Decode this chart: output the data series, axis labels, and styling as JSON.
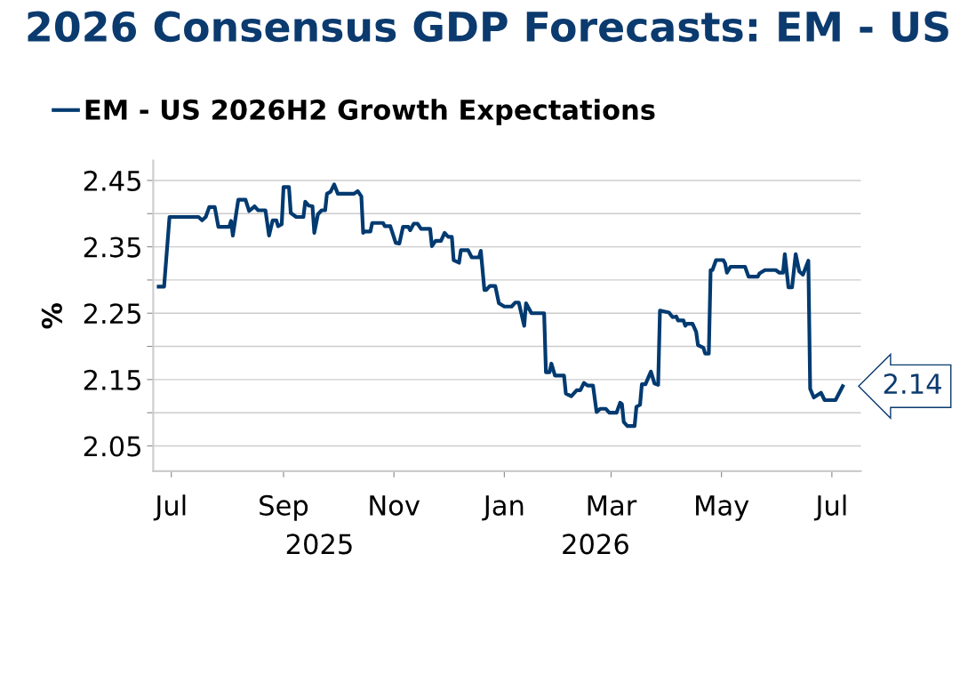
{
  "chart_data": {
    "type": "line",
    "title": "2026 Consensus GDP Forecasts: EM - US",
    "ylabel": "%",
    "x": [
      "2025-06-24",
      "2025-06-27",
      "2025-06-30",
      "2025-07-16",
      "2025-07-18",
      "2025-07-20",
      "2025-07-22",
      "2025-07-25",
      "2025-07-27",
      "2025-08-02",
      "2025-08-03",
      "2025-08-04",
      "2025-08-07",
      "2025-08-11",
      "2025-08-13",
      "2025-08-16",
      "2025-08-18",
      "2025-08-22",
      "2025-08-24",
      "2025-08-26",
      "2025-08-28",
      "2025-08-29",
      "2025-08-31",
      "2025-09-01",
      "2025-09-04",
      "2025-09-05",
      "2025-09-08",
      "2025-09-12",
      "2025-09-13",
      "2025-09-15",
      "2025-09-17",
      "2025-09-18",
      "2025-09-20",
      "2025-09-22",
      "2025-09-24",
      "2025-09-25",
      "2025-09-27",
      "2025-09-29",
      "2025-10-01",
      "2025-10-10",
      "2025-10-12",
      "2025-10-14",
      "2025-10-15",
      "2025-10-16",
      "2025-10-19",
      "2025-10-20",
      "2025-10-26",
      "2025-10-27",
      "2025-10-30",
      "2025-11-02",
      "2025-11-04",
      "2025-11-06",
      "2025-11-09",
      "2025-11-10",
      "2025-11-12",
      "2025-11-14",
      "2025-11-16",
      "2025-11-21",
      "2025-11-22",
      "2025-11-24",
      "2025-11-27",
      "2025-11-29",
      "2025-12-01",
      "2025-12-03",
      "2025-12-04",
      "2025-12-07",
      "2025-12-08",
      "2025-12-12",
      "2025-12-14",
      "2025-12-18",
      "2025-12-19",
      "2025-12-21",
      "2025-12-22",
      "2025-12-24",
      "2025-12-27",
      "2025-12-29",
      "2026-01-01",
      "2026-01-05",
      "2026-01-07",
      "2026-01-09",
      "2026-01-12",
      "2026-01-13",
      "2026-01-16",
      "2026-01-23",
      "2026-01-24",
      "2026-01-26",
      "2026-01-27",
      "2026-01-29",
      "2026-02-03",
      "2026-02-04",
      "2026-02-07",
      "2026-02-10",
      "2026-02-12",
      "2026-02-14",
      "2026-02-16",
      "2026-02-19",
      "2026-02-21",
      "2026-02-23",
      "2026-02-26",
      "2026-02-28",
      "2026-03-04",
      "2026-03-06",
      "2026-03-07",
      "2026-03-08",
      "2026-03-10",
      "2026-03-14",
      "2026-03-15",
      "2026-03-17",
      "2026-03-18",
      "2026-03-20",
      "2026-03-23",
      "2026-03-25",
      "2026-03-27",
      "2026-03-28",
      "2026-04-02",
      "2026-04-04",
      "2026-04-06",
      "2026-04-07",
      "2026-04-10",
      "2026-04-11",
      "2026-04-12",
      "2026-04-15",
      "2026-04-17",
      "2026-04-18",
      "2026-04-21",
      "2026-04-22",
      "2026-04-24",
      "2026-04-25",
      "2026-04-26",
      "2026-04-28",
      "2026-05-02",
      "2026-05-03",
      "2026-05-04",
      "2026-05-06",
      "2026-05-14",
      "2026-05-16",
      "2026-05-21",
      "2026-05-22",
      "2026-05-25",
      "2026-05-31",
      "2026-06-02",
      "2026-06-04",
      "2026-06-05",
      "2026-06-07",
      "2026-06-09",
      "2026-06-11",
      "2026-06-13",
      "2026-06-15",
      "2026-06-18",
      "2026-06-19",
      "2026-06-21",
      "2026-06-25",
      "2026-06-27",
      "2026-07-03",
      "2026-07-07"
    ],
    "series": [
      {
        "name": "EM - US 2026H2 Growth Expectations",
        "color": "#003a70",
        "values": [
          2.29,
          2.29,
          2.395,
          2.395,
          2.39,
          2.395,
          2.41,
          2.41,
          2.38,
          2.38,
          2.389,
          2.367,
          2.421,
          2.421,
          2.404,
          2.411,
          2.405,
          2.405,
          2.367,
          2.39,
          2.39,
          2.381,
          2.384,
          2.44,
          2.44,
          2.401,
          2.395,
          2.395,
          2.418,
          2.412,
          2.411,
          2.371,
          2.399,
          2.405,
          2.405,
          2.43,
          2.433,
          2.444,
          2.43,
          2.43,
          2.434,
          2.426,
          2.371,
          2.373,
          2.373,
          2.386,
          2.386,
          2.381,
          2.381,
          2.356,
          2.355,
          2.38,
          2.38,
          2.375,
          2.385,
          2.385,
          2.377,
          2.377,
          2.351,
          2.359,
          2.359,
          2.371,
          2.365,
          2.365,
          2.33,
          2.326,
          2.345,
          2.345,
          2.334,
          2.334,
          2.344,
          2.285,
          2.285,
          2.291,
          2.291,
          2.265,
          2.26,
          2.26,
          2.266,
          2.266,
          2.231,
          2.265,
          2.25,
          2.25,
          2.161,
          2.161,
          2.174,
          2.156,
          2.156,
          2.129,
          2.125,
          2.134,
          2.134,
          2.145,
          2.141,
          2.141,
          2.101,
          2.106,
          2.106,
          2.1,
          2.1,
          2.115,
          2.113,
          2.086,
          2.08,
          2.08,
          2.109,
          2.112,
          2.143,
          2.143,
          2.162,
          2.144,
          2.142,
          2.254,
          2.251,
          2.244,
          2.245,
          2.239,
          2.239,
          2.231,
          2.234,
          2.234,
          2.222,
          2.202,
          2.198,
          2.189,
          2.189,
          2.315,
          2.315,
          2.33,
          2.33,
          2.325,
          2.311,
          2.32,
          2.32,
          2.305,
          2.305,
          2.31,
          2.315,
          2.315,
          2.311,
          2.311,
          2.339,
          2.289,
          2.289,
          2.339,
          2.313,
          2.308,
          2.329,
          2.136,
          2.123,
          2.13,
          2.119,
          2.119,
          2.14
        ]
      }
    ],
    "xlim": [
      "2025-06-21",
      "2026-07-17"
    ],
    "xticks": [
      {
        "value": "2025-07-01",
        "label": "Jul"
      },
      {
        "value": "2025-09-01",
        "label": "Sep"
      },
      {
        "value": "2025-11-01",
        "label": "Nov"
      },
      {
        "value": "2026-01-01",
        "label": "Jan"
      },
      {
        "value": "2026-03-01",
        "label": "Mar"
      },
      {
        "value": "2026-05-01",
        "label": "May"
      },
      {
        "value": "2026-07-01",
        "label": "Jul"
      }
    ],
    "ylim": [
      2.012,
      2.48
    ],
    "yticks": [
      2.05,
      {
        "value": 2.1,
        "label": null
      },
      2.15,
      {
        "value": 2.2,
        "label": null
      },
      2.25,
      {
        "value": 2.3,
        "label": null
      },
      2.35,
      {
        "value": 2.4,
        "label": null
      },
      2.45
    ],
    "grid": "y",
    "legend": "top left",
    "annotations": [
      {
        "text": "2.14",
        "x": "2026-07-07",
        "y": 2.14
      },
      "2025",
      "2026"
    ]
  }
}
